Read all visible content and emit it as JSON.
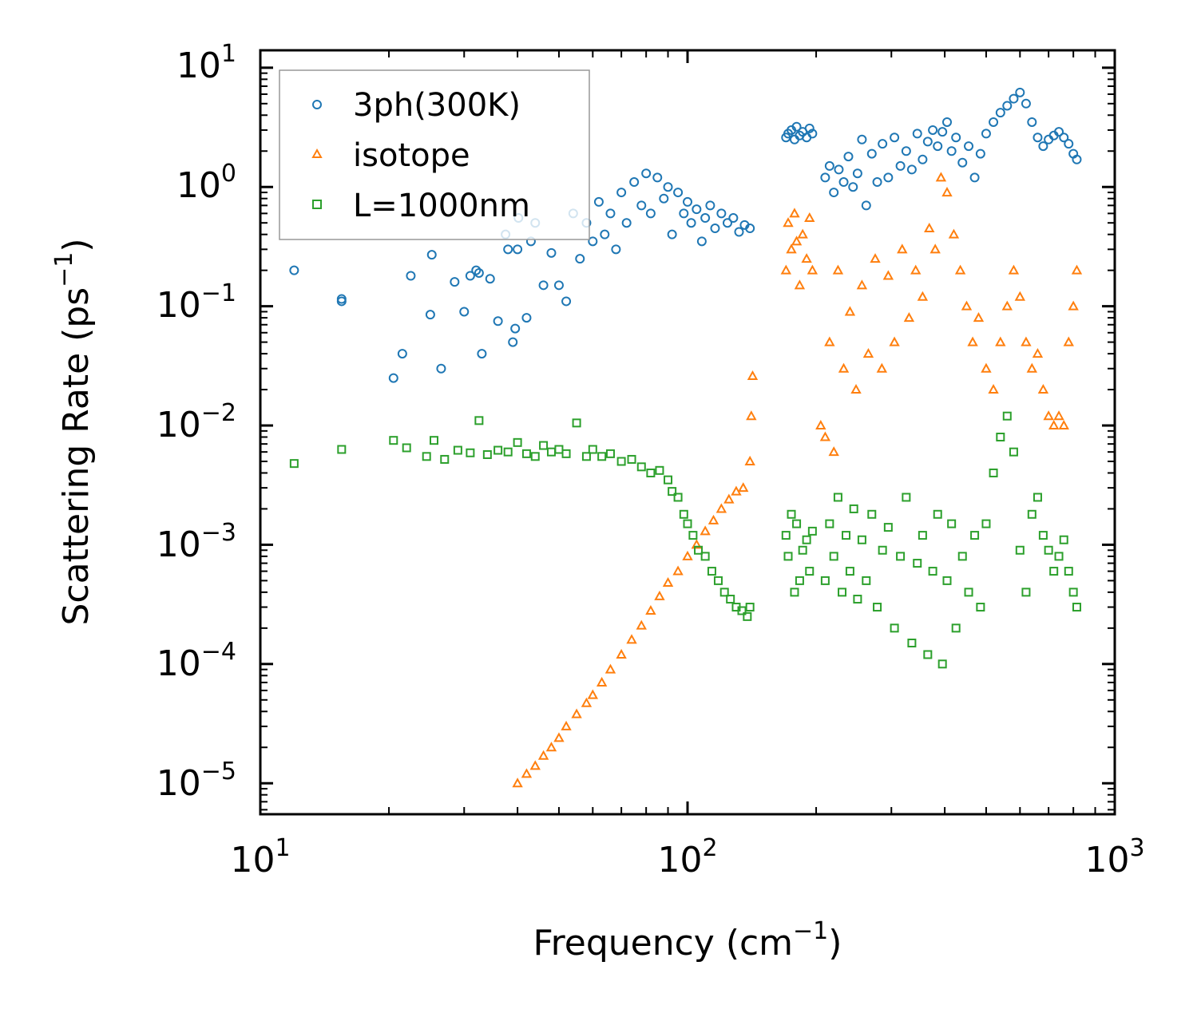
{
  "chart_data": {
    "type": "scatter",
    "title": "",
    "xlabel": "Frequency (cm",
    "xlabel_sup": "−1",
    "xlabel_end": ")",
    "ylabel": "Scattering Rate (ps",
    "ylabel_sup": "−1",
    "ylabel_end": ")",
    "xscale": "log",
    "yscale": "log",
    "xlim": [
      10,
      1000
    ],
    "ylim": [
      5.5e-06,
      14
    ],
    "x_ticks": [
      {
        "base": "10",
        "exp": "1",
        "value": 10
      },
      {
        "base": "10",
        "exp": "2",
        "value": 100
      },
      {
        "base": "10",
        "exp": "3",
        "value": 1000
      }
    ],
    "y_ticks": [
      {
        "base": "10",
        "exp": "1",
        "value": 10
      },
      {
        "base": "10",
        "exp": "0",
        "value": 1
      },
      {
        "base": "10",
        "exp": "−1",
        "value": 0.1
      },
      {
        "base": "10",
        "exp": "−2",
        "value": 0.01
      },
      {
        "base": "10",
        "exp": "−3",
        "value": 0.001
      },
      {
        "base": "10",
        "exp": "−4",
        "value": 0.0001
      },
      {
        "base": "10",
        "exp": "−5",
        "value": 1e-05
      }
    ],
    "legend_position": "top-left",
    "series": [
      {
        "name": "3ph(300K)",
        "color": "#1f77b4",
        "marker": "circle",
        "x": [
          12,
          15.5,
          15.5,
          20.5,
          21.5,
          22.5,
          25,
          25.2,
          26.5,
          28.5,
          30,
          31,
          32,
          32.5,
          33,
          34.5,
          36,
          37.5,
          38,
          39,
          39.5,
          40,
          40.2,
          42,
          43,
          44,
          46,
          48,
          50,
          52,
          54,
          56,
          58,
          60,
          62,
          64,
          66,
          68,
          70,
          72,
          75,
          78,
          80,
          82,
          85,
          88,
          90,
          92,
          95,
          98,
          100,
          102,
          105,
          108,
          110,
          113,
          116,
          120,
          124,
          128,
          132,
          136,
          140,
          170,
          172,
          175,
          178,
          180,
          183,
          186,
          190,
          193,
          196,
          210,
          215,
          220,
          226,
          232,
          238,
          244,
          250,
          256,
          262,
          270,
          278,
          286,
          295,
          305,
          315,
          325,
          335,
          345,
          355,
          365,
          375,
          385,
          395,
          405,
          415,
          425,
          440,
          455,
          470,
          485,
          500,
          520,
          540,
          560,
          580,
          600,
          620,
          640,
          660,
          680,
          700,
          720,
          740,
          760,
          780,
          800,
          815
        ],
        "y": [
          0.2,
          0.11,
          0.115,
          0.025,
          0.04,
          0.18,
          0.085,
          0.27,
          0.03,
          0.16,
          0.09,
          0.18,
          0.2,
          0.19,
          0.04,
          0.17,
          0.075,
          0.4,
          0.3,
          0.05,
          0.065,
          0.3,
          0.55,
          0.08,
          0.35,
          0.5,
          0.15,
          0.28,
          0.15,
          0.11,
          0.6,
          0.25,
          0.5,
          0.35,
          0.75,
          0.4,
          0.6,
          0.3,
          0.9,
          0.5,
          1.1,
          0.7,
          1.3,
          0.6,
          1.2,
          0.8,
          1.0,
          0.4,
          0.9,
          0.6,
          0.75,
          0.5,
          0.65,
          0.35,
          0.55,
          0.7,
          0.45,
          0.6,
          0.5,
          0.55,
          0.42,
          0.48,
          0.45,
          2.6,
          2.8,
          3.0,
          2.5,
          3.2,
          2.7,
          2.9,
          2.6,
          3.1,
          2.8,
          1.2,
          1.5,
          0.9,
          1.4,
          1.1,
          1.8,
          1.0,
          1.3,
          2.5,
          0.7,
          1.9,
          1.1,
          2.3,
          1.2,
          2.6,
          1.5,
          2.0,
          1.4,
          2.8,
          1.7,
          2.4,
          3.0,
          2.2,
          2.9,
          3.5,
          2.0,
          2.6,
          1.6,
          2.2,
          1.2,
          1.9,
          2.8,
          3.5,
          4.2,
          4.8,
          5.5,
          6.2,
          5.0,
          3.5,
          2.6,
          2.2,
          2.5,
          2.7,
          2.9,
          2.6,
          2.3,
          1.9,
          1.7
        ]
      },
      {
        "name": "isotope",
        "color": "#ff7f0e",
        "marker": "triangle",
        "x": [
          40,
          42,
          44,
          46,
          48,
          50,
          52,
          55,
          58,
          60,
          63,
          66,
          70,
          74,
          78,
          82,
          86,
          90,
          95,
          100,
          105,
          110,
          115,
          120,
          125,
          130,
          135,
          140,
          141,
          142,
          170,
          172,
          175,
          178,
          180,
          183,
          186,
          190,
          193,
          196,
          205,
          210,
          215,
          220,
          225,
          232,
          240,
          248,
          256,
          265,
          275,
          285,
          295,
          305,
          318,
          330,
          342,
          355,
          368,
          380,
          392,
          405,
          420,
          435,
          450,
          465,
          480,
          500,
          520,
          540,
          560,
          580,
          600,
          620,
          640,
          660,
          680,
          700,
          720,
          740,
          760,
          780,
          800,
          815
        ],
        "y": [
          1e-05,
          1.2e-05,
          1.4e-05,
          1.7e-05,
          2e-05,
          2.4e-05,
          3e-05,
          3.8e-05,
          4.7e-05,
          5.5e-05,
          7e-05,
          9e-05,
          0.00012,
          0.00016,
          0.00021,
          0.00028,
          0.00037,
          0.00048,
          0.0006,
          0.0008,
          0.001,
          0.0013,
          0.0016,
          0.002,
          0.0024,
          0.0028,
          0.003,
          0.005,
          0.012,
          0.026,
          0.2,
          0.5,
          0.3,
          0.6,
          0.35,
          0.15,
          0.4,
          0.25,
          0.55,
          0.2,
          0.01,
          0.008,
          0.05,
          0.006,
          0.2,
          0.03,
          0.09,
          0.02,
          0.15,
          0.04,
          0.25,
          0.03,
          0.18,
          0.05,
          0.3,
          0.08,
          0.2,
          0.12,
          0.45,
          0.3,
          1.2,
          0.9,
          0.4,
          0.2,
          0.1,
          0.05,
          0.08,
          0.03,
          0.02,
          0.05,
          0.1,
          0.2,
          0.12,
          0.05,
          0.03,
          0.04,
          0.02,
          0.012,
          0.01,
          0.012,
          0.01,
          0.05,
          0.1,
          0.2
        ]
      },
      {
        "name": "L=1000nm",
        "color": "#2ca02c",
        "marker": "square",
        "x": [
          12,
          15.5,
          20.5,
          22,
          24.5,
          25.5,
          27,
          29,
          31,
          32.5,
          34,
          36,
          38,
          40,
          42,
          44,
          46,
          48,
          50,
          52,
          55,
          58,
          60,
          63,
          66,
          70,
          74,
          78,
          82,
          86,
          90,
          92,
          95,
          98,
          100,
          103,
          106,
          110,
          114,
          118,
          122,
          126,
          130,
          134,
          138,
          140,
          170,
          172,
          175,
          178,
          180,
          183,
          186,
          190,
          193,
          196,
          210,
          215,
          220,
          225,
          230,
          235,
          240,
          245,
          250,
          256,
          262,
          270,
          278,
          286,
          295,
          305,
          315,
          325,
          335,
          345,
          355,
          365,
          375,
          385,
          395,
          405,
          415,
          425,
          440,
          455,
          470,
          485,
          500,
          520,
          540,
          560,
          580,
          600,
          620,
          640,
          660,
          680,
          700,
          720,
          740,
          760,
          780,
          800,
          815
        ],
        "y": [
          0.0048,
          0.0063,
          0.0075,
          0.0065,
          0.0055,
          0.0075,
          0.0052,
          0.0062,
          0.0059,
          0.011,
          0.0057,
          0.0062,
          0.006,
          0.0072,
          0.0058,
          0.0055,
          0.0068,
          0.006,
          0.0063,
          0.0058,
          0.0105,
          0.0055,
          0.0063,
          0.0055,
          0.0058,
          0.005,
          0.0052,
          0.0045,
          0.004,
          0.0042,
          0.0035,
          0.0028,
          0.0025,
          0.0018,
          0.0015,
          0.0012,
          0.0009,
          0.0008,
          0.0006,
          0.0005,
          0.0004,
          0.00035,
          0.0003,
          0.00028,
          0.00025,
          0.0003,
          0.0012,
          0.0008,
          0.0018,
          0.0004,
          0.0015,
          0.0005,
          0.0009,
          0.0011,
          0.0006,
          0.0013,
          0.0005,
          0.0015,
          0.0008,
          0.0025,
          0.0004,
          0.0012,
          0.0006,
          0.002,
          0.00035,
          0.0011,
          0.0005,
          0.0018,
          0.0003,
          0.0009,
          0.0014,
          0.0002,
          0.0008,
          0.0025,
          0.00015,
          0.0007,
          0.0012,
          0.00012,
          0.0006,
          0.0018,
          0.0001,
          0.0005,
          0.0015,
          0.0002,
          0.0008,
          0.0004,
          0.0012,
          0.0003,
          0.0015,
          0.004,
          0.008,
          0.012,
          0.006,
          0.0009,
          0.0004,
          0.0018,
          0.0025,
          0.0012,
          0.0009,
          0.0006,
          0.0008,
          0.0011,
          0.0006,
          0.0004,
          0.0003
        ]
      }
    ]
  }
}
